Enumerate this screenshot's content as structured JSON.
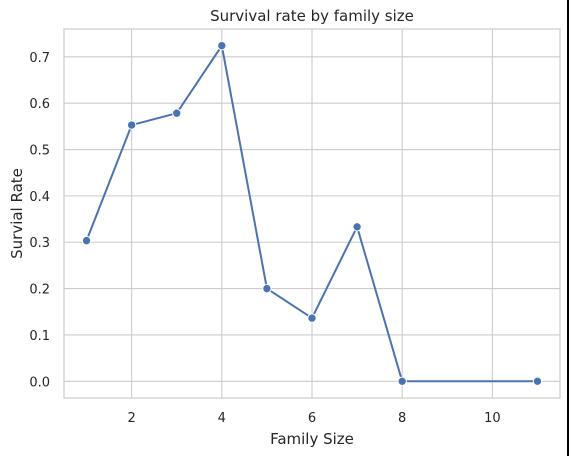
{
  "chart_data": {
    "type": "line",
    "title": "Survival rate by family size",
    "xlabel": "Family Size",
    "ylabel": "Survial Rate",
    "xlim": [
      0.5,
      11.5
    ],
    "ylim": [
      -0.036,
      0.76
    ],
    "x_ticks": [
      2,
      4,
      6,
      8,
      10
    ],
    "y_ticks": [
      0.0,
      0.1,
      0.2,
      0.3,
      0.4,
      0.5,
      0.6,
      0.7
    ],
    "x_tick_labels": [
      "2",
      "4",
      "6",
      "8",
      "10"
    ],
    "y_tick_labels": [
      "0.0",
      "0.1",
      "0.2",
      "0.3",
      "0.4",
      "0.5",
      "0.6",
      "0.7"
    ],
    "grid": true,
    "series": [
      {
        "name": "Survival rate",
        "color": "#4c72b0",
        "x": [
          1,
          2,
          3,
          4,
          5,
          6,
          7,
          8,
          11
        ],
        "values": [
          0.3035,
          0.5528,
          0.5784,
          0.7241,
          0.2,
          0.1364,
          0.3333,
          0.0,
          0.0
        ]
      }
    ]
  }
}
